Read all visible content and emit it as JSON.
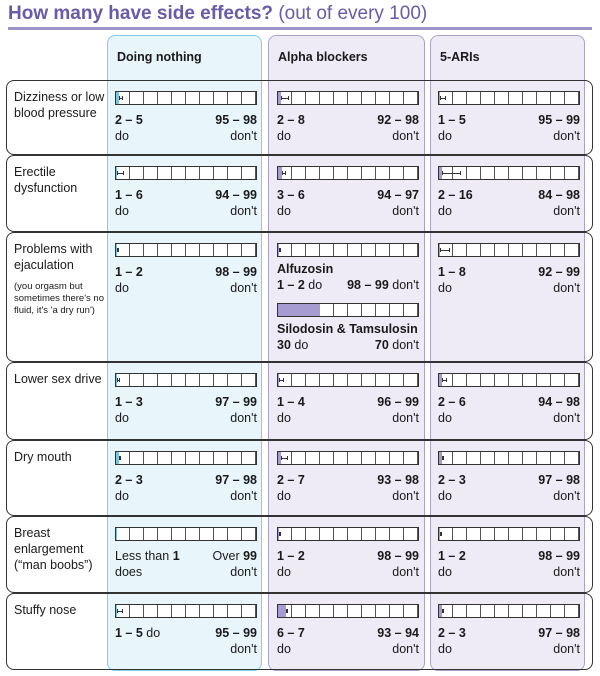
{
  "title": {
    "main": "How many have side effects?",
    "sub": "(out of every 100)"
  },
  "colors": {
    "title": "#6a5aa8",
    "nothing_fill": "#7fc3dd",
    "drug_fill": "#a79cd1"
  },
  "columns": [
    "Doing nothing",
    "Alpha blockers",
    "5-ARIs"
  ],
  "rows": [
    {
      "label": "Dizziness or low blood pressure",
      "cells": [
        {
          "bar": [
            2,
            5
          ],
          "left": {
            "num": "2 – 5",
            "word": "do"
          },
          "right": {
            "num": "95 – 98",
            "word": "don't"
          }
        },
        {
          "bar": [
            2,
            8
          ],
          "left": {
            "num": "2 – 8",
            "word": "do"
          },
          "right": {
            "num": "92 – 98",
            "word": "don't"
          }
        },
        {
          "bar": [
            1,
            5
          ],
          "left": {
            "num": "1 – 5",
            "word": "do"
          },
          "right": {
            "num": "95 – 99",
            "word": "don't"
          }
        }
      ]
    },
    {
      "label": "Erectile dysfunction",
      "cells": [
        {
          "bar": [
            1,
            6
          ],
          "left": {
            "num": "1 – 6",
            "word": "do"
          },
          "right": {
            "num": "94 – 99",
            "word": "don't"
          }
        },
        {
          "bar": [
            3,
            6
          ],
          "left": {
            "num": "3 – 6",
            "word": "do"
          },
          "right": {
            "num": "94 – 97",
            "word": "don't"
          }
        },
        {
          "bar": [
            2,
            16
          ],
          "left": {
            "num": "2 – 16",
            "word": "do"
          },
          "right": {
            "num": "84 – 98",
            "word": "don't"
          }
        }
      ]
    },
    {
      "label": "Problems with ejaculation",
      "note": "(you orgasm but sometimes there's no fluid, it's 'a dry run')",
      "cells": [
        {
          "bar": [
            1,
            2
          ],
          "left": {
            "num": "1 – 2",
            "word": "do"
          },
          "right": {
            "num": "98 – 99",
            "word": "don't"
          }
        },
        {
          "entries": [
            {
              "name": "Alfuzosin",
              "bar": [
                1,
                2
              ],
              "left": {
                "num": "1 – 2",
                "word": "do",
                "inline": true
              },
              "right": {
                "num": "98 – 99",
                "word": "don't",
                "inline": true
              }
            },
            {
              "name": "Silodosin & Tamsulosin",
              "bar": [
                30,
                30
              ],
              "left": {
                "num": "30",
                "word": "do",
                "inline": true
              },
              "right": {
                "num": "70",
                "word": "don't",
                "inline": true
              }
            }
          ]
        },
        {
          "bar": [
            1,
            8
          ],
          "left": {
            "num": "1 – 8",
            "word": "do"
          },
          "right": {
            "num": "92 – 99",
            "word": "don't"
          }
        }
      ]
    },
    {
      "label": "Lower sex drive",
      "cells": [
        {
          "bar": [
            1,
            3
          ],
          "left": {
            "num": "1 – 3",
            "word": "do"
          },
          "right": {
            "num": "97 – 99",
            "word": "don't"
          }
        },
        {
          "bar": [
            1,
            4
          ],
          "left": {
            "num": "1 – 4",
            "word": "do"
          },
          "right": {
            "num": "96 – 99",
            "word": "don't"
          }
        },
        {
          "bar": [
            2,
            6
          ],
          "left": {
            "num": "2 – 6",
            "word": "do"
          },
          "right": {
            "num": "94 – 98",
            "word": "don't"
          }
        }
      ]
    },
    {
      "label": "Dry mouth",
      "cells": [
        {
          "bar": [
            2,
            3
          ],
          "left": {
            "num": "2 – 3",
            "word": "do"
          },
          "right": {
            "num": "97 – 98",
            "word": "don't"
          }
        },
        {
          "bar": [
            2,
            7
          ],
          "left": {
            "num": "2 – 7",
            "word": "do"
          },
          "right": {
            "num": "93 – 98",
            "word": "don't"
          }
        },
        {
          "bar": [
            2,
            3
          ],
          "left": {
            "num": "2 – 3",
            "word": "do"
          },
          "right": {
            "num": "97 – 98",
            "word": "don't"
          }
        }
      ]
    },
    {
      "label": "Breast enlargement (“man boobs”)",
      "cells": [
        {
          "bar": [
            0.5,
            0.5
          ],
          "left": {
            "pre": "Less than ",
            "num": "1",
            "word": "does"
          },
          "right": {
            "pre": "Over ",
            "num": "99",
            "word": "don't"
          }
        },
        {
          "bar": [
            1,
            2
          ],
          "left": {
            "num": "1 – 2",
            "word": "do"
          },
          "right": {
            "num": "98 – 99",
            "word": "don't"
          }
        },
        {
          "bar": [
            1,
            2
          ],
          "left": {
            "num": "1 – 2",
            "word": "do"
          },
          "right": {
            "num": "98 – 99",
            "word": "don't"
          }
        }
      ]
    },
    {
      "label": "Stuffy nose",
      "cells": [
        {
          "bar": [
            1,
            5
          ],
          "left": {
            "num": "1 – 5",
            "word": "do",
            "inline": true
          },
          "right": {
            "num": "95 – 99",
            "word": "don't"
          }
        },
        {
          "bar": [
            6,
            7
          ],
          "left": {
            "num": "6 – 7",
            "word": "do"
          },
          "right": {
            "num": "93 – 94",
            "word": "don't"
          }
        },
        {
          "bar": [
            2,
            3
          ],
          "left": {
            "num": "2 – 3",
            "word": "do"
          },
          "right": {
            "num": "97 – 98",
            "word": "don't"
          }
        }
      ]
    }
  ]
}
